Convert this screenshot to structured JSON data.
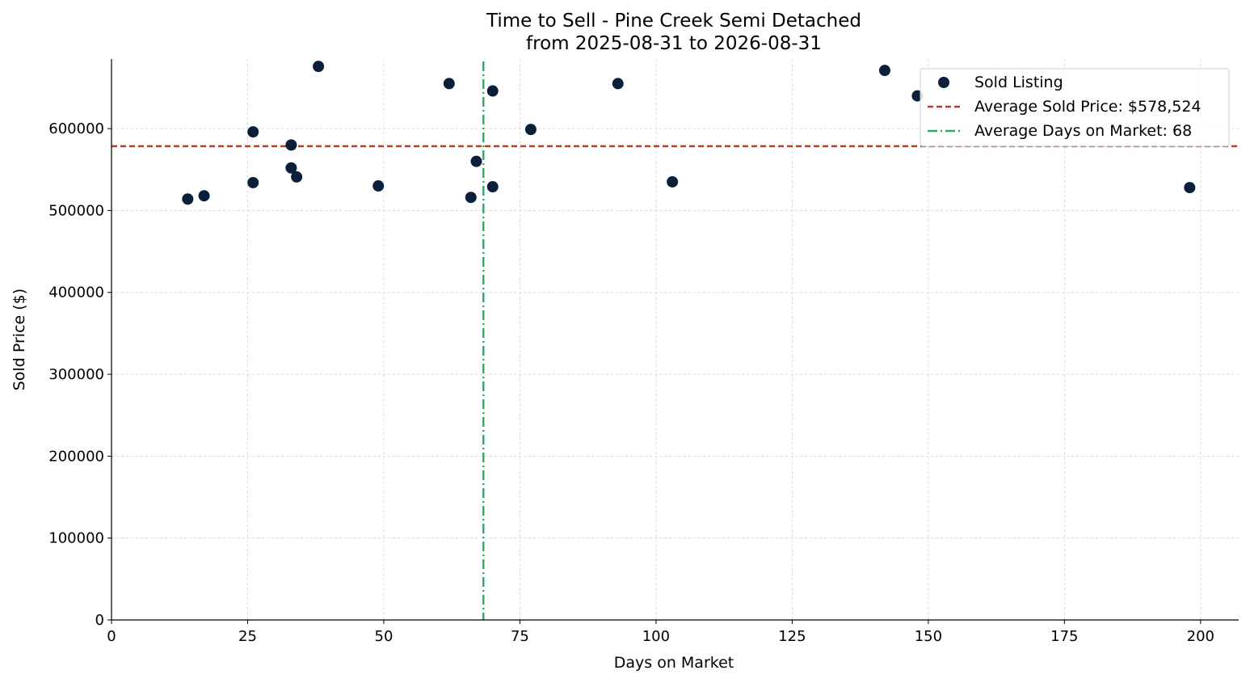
{
  "chart_data": {
    "type": "scatter",
    "title": "Time to Sell - Pine Creek Semi Detached",
    "subtitle": "from 2025-08-31 to 2026-08-31",
    "xlabel": "Days on Market",
    "ylabel": "Sold Price ($)",
    "xlim": [
      0,
      207
    ],
    "ylim": [
      0,
      685000
    ],
    "xticks": [
      "0",
      "25",
      "50",
      "75",
      "100",
      "125",
      "150",
      "175",
      "200"
    ],
    "xtick_values": [
      0,
      25,
      50,
      75,
      100,
      125,
      150,
      175,
      200
    ],
    "yticks": [
      "0",
      "100000",
      "200000",
      "300000",
      "400000",
      "500000",
      "600000"
    ],
    "ytick_values": [
      0,
      100000,
      200000,
      300000,
      400000,
      500000,
      600000
    ],
    "grid": true,
    "legend_position": "top-right",
    "series": [
      {
        "name": "Sold Listing",
        "color": "#0b1f3a",
        "points": [
          {
            "x": 14,
            "y": 514000
          },
          {
            "x": 17,
            "y": 518000
          },
          {
            "x": 26,
            "y": 596000
          },
          {
            "x": 26,
            "y": 534000
          },
          {
            "x": 33,
            "y": 580000
          },
          {
            "x": 33,
            "y": 552000
          },
          {
            "x": 34,
            "y": 541000
          },
          {
            "x": 38,
            "y": 676000
          },
          {
            "x": 49,
            "y": 530000
          },
          {
            "x": 62,
            "y": 655000
          },
          {
            "x": 66,
            "y": 516000
          },
          {
            "x": 67,
            "y": 560000
          },
          {
            "x": 70,
            "y": 646000
          },
          {
            "x": 70,
            "y": 529000
          },
          {
            "x": 77,
            "y": 599000
          },
          {
            "x": 93,
            "y": 655000
          },
          {
            "x": 103,
            "y": 535000
          },
          {
            "x": 142,
            "y": 671000
          },
          {
            "x": 148,
            "y": 640000
          },
          {
            "x": 198,
            "y": 528000
          }
        ]
      }
    ],
    "reference_lines": [
      {
        "name": "Average Sold Price: $578,524",
        "orientation": "horizontal",
        "value": 578524,
        "color": "#c0392b",
        "style": "dashed"
      },
      {
        "name": "Average Days on Market: 68",
        "orientation": "vertical",
        "value": 68.3,
        "color": "#27ae60",
        "style": "dashdot"
      }
    ]
  }
}
